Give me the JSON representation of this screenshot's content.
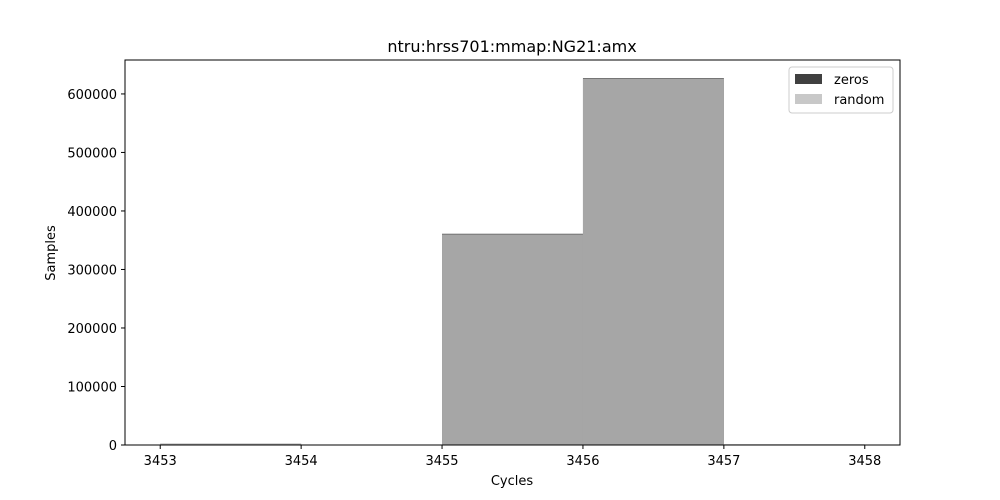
{
  "chart_data": {
    "type": "bar",
    "title": "ntru:hrss701:mmap:NG21:amx",
    "xlabel": "Cycles",
    "ylabel": "Samples",
    "xlim": [
      3452.75,
      3458.25
    ],
    "ylim": [
      0,
      658000
    ],
    "xticks": [
      3453,
      3454,
      3455,
      3456,
      3457,
      3458
    ],
    "yticks": [
      0,
      100000,
      200000,
      300000,
      400000,
      500000,
      600000
    ],
    "legend_position": "top-right",
    "series": [
      {
        "name": "zeros",
        "color": "#404040",
        "bins": [
          {
            "x0": 3453,
            "x1": 3454,
            "value": 2000
          },
          {
            "x0": 3454,
            "x1": 3455,
            "value": 0
          },
          {
            "x0": 3455,
            "x1": 3456,
            "value": 361000
          },
          {
            "x0": 3456,
            "x1": 3457,
            "value": 627000
          },
          {
            "x0": 3457,
            "x1": 3458,
            "value": 1000
          }
        ]
      },
      {
        "name": "random",
        "color": "#c8c8c8",
        "bins": [
          {
            "x0": 3453,
            "x1": 3454,
            "value": 3000
          },
          {
            "x0": 3454,
            "x1": 3455,
            "value": 0
          },
          {
            "x0": 3455,
            "x1": 3456,
            "value": 360000
          },
          {
            "x0": 3456,
            "x1": 3457,
            "value": 626000
          },
          {
            "x0": 3457,
            "x1": 3458,
            "value": 1000
          }
        ]
      }
    ]
  }
}
